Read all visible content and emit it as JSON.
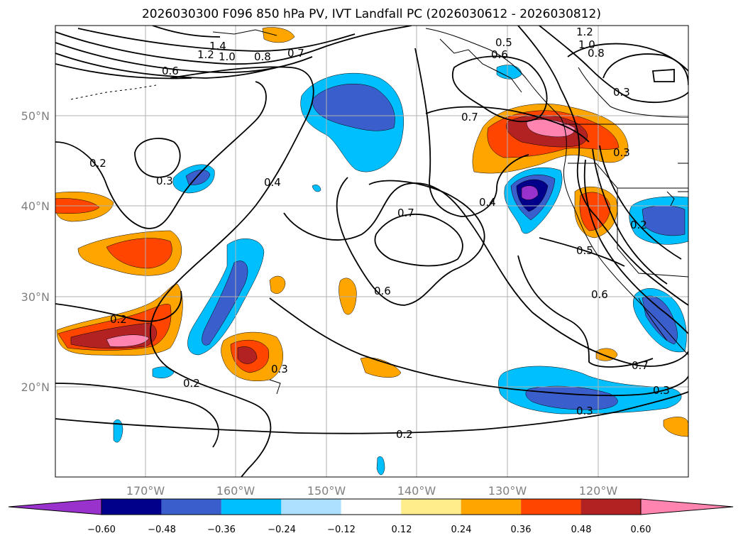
{
  "title": "2026030300 F096 850 hPa PV, IVT Landfall PC (2026030612 - 2026030812)",
  "lon_labels": [
    "170°W",
    "160°W",
    "150°W",
    "140°W",
    "130°W",
    "120°W"
  ],
  "lat_labels": [
    "50°N",
    "40°N",
    "30°N",
    "20°N"
  ],
  "contour_labels": [
    "1.4",
    "1.2",
    "1.0",
    "0.8",
    "0.7",
    "0.6",
    "0.5",
    "0.6",
    "1.2",
    "1.0",
    "0.8",
    "0.3",
    "0.7",
    "0.3",
    "0.2",
    "0.3",
    "0.4",
    "0.7",
    "0.4",
    "0.2",
    "0.5",
    "0.6",
    "0.2",
    "0.3",
    "0.2",
    "0.6",
    "0.7",
    "0.3",
    "0.3",
    "0.2"
  ],
  "colorbar": {
    "colors": [
      "#9932CC",
      "#00008B",
      "#3A5FCD",
      "#00BFFF",
      "#ADDFFF",
      "#FFFFFF",
      "#FFEC8B",
      "#FFA500",
      "#FF4500",
      "#B22222",
      "#FF85B0"
    ],
    "tick_labels": [
      "−0.60",
      "−0.48",
      "−0.36",
      "−0.24",
      "−0.12",
      "0.12",
      "0.24",
      "0.36",
      "0.48",
      "0.60"
    ]
  }
}
